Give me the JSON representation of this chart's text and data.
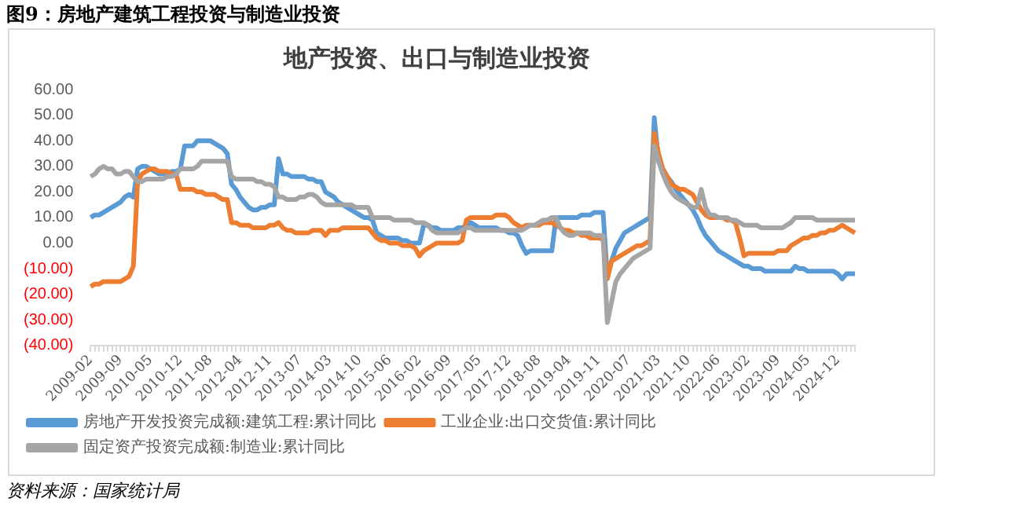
{
  "chart_data": {
    "type": "line",
    "title": "地产投资、出口与制造业投资",
    "subtitle": "图9：房地产建筑工程投资与制造业投资",
    "annotations": [
      "资料来源：国家统计局"
    ],
    "categories": [
      "2009-02",
      null,
      null,
      null,
      null,
      null,
      null,
      "2009-09",
      null,
      null,
      null,
      null,
      null,
      null,
      "2010-05",
      null,
      null,
      null,
      null,
      null,
      null,
      "2010-12",
      null,
      null,
      null,
      null,
      null,
      null,
      "2011-08",
      null,
      null,
      null,
      null,
      null,
      null,
      "2012-04",
      null,
      null,
      null,
      null,
      null,
      null,
      "2012-11",
      null,
      null,
      null,
      null,
      null,
      null,
      "2013-07",
      null,
      null,
      null,
      null,
      null,
      null,
      "2014-03",
      null,
      null,
      null,
      null,
      null,
      null,
      "2014-10",
      null,
      null,
      null,
      null,
      null,
      null,
      "2015-06",
      null,
      null,
      null,
      null,
      null,
      null,
      "2016-02",
      null,
      null,
      null,
      null,
      null,
      null,
      "2016-09",
      null,
      null,
      null,
      null,
      null,
      null,
      "2017-05",
      null,
      null,
      null,
      null,
      null,
      null,
      "2017-12",
      null,
      null,
      null,
      null,
      null,
      null,
      "2018-08",
      null,
      null,
      null,
      null,
      null,
      null,
      "2019-04",
      null,
      null,
      null,
      null,
      null,
      null,
      "2019-11",
      null,
      null,
      null,
      null,
      null,
      null,
      "2020-07",
      null,
      null,
      null,
      null,
      null,
      null,
      "2021-03",
      null,
      null,
      null,
      null,
      null,
      null,
      "2021-10",
      null,
      null,
      null,
      null,
      null,
      null,
      "2022-06",
      null,
      null,
      null,
      null,
      null,
      null,
      "2023-02",
      null,
      null,
      null,
      null,
      null,
      null,
      "2023-09",
      null,
      null,
      null,
      null,
      null,
      null,
      "2024-05",
      null,
      null,
      null,
      null,
      null,
      null,
      "2024-12",
      null,
      null,
      null,
      null
    ],
    "series": [
      {
        "name": "房地产开发投资完成额:建筑工程:累计同比",
        "color": "#5b9bd5",
        "values": [
          10,
          11,
          11,
          12,
          13,
          14,
          15,
          16,
          18,
          19,
          18,
          29,
          30,
          30,
          29,
          28,
          27,
          27,
          27,
          28,
          28,
          29,
          38,
          38,
          38,
          40,
          40,
          40,
          40,
          39,
          38,
          37,
          35,
          23,
          21,
          18,
          16,
          14,
          13,
          13,
          14,
          14,
          15,
          15,
          33,
          27,
          27,
          26,
          26,
          26,
          26,
          25,
          25,
          24,
          24,
          20,
          19,
          18,
          16,
          15,
          14,
          13,
          12,
          11,
          10,
          10,
          9,
          4,
          3,
          2,
          2,
          2,
          2,
          1,
          1,
          0,
          0,
          0,
          7,
          7,
          6,
          6,
          5,
          5,
          5,
          5,
          6,
          6,
          7,
          8,
          7,
          6,
          6,
          6,
          6,
          6,
          5,
          5,
          4,
          4,
          3,
          -1,
          -4,
          -3,
          -3,
          -3,
          -3,
          -3,
          -3,
          10,
          10,
          10,
          10,
          10,
          10,
          11,
          11,
          11,
          12,
          12,
          12,
          -13,
          -7,
          -2,
          1,
          4,
          5,
          6,
          7,
          8,
          9,
          10,
          49,
          32,
          29,
          26,
          24,
          21,
          19,
          17,
          15,
          13,
          10,
          6,
          3,
          1,
          -1,
          -3,
          -4,
          -5,
          -6,
          -7,
          -8,
          -9,
          -9,
          -10,
          -10,
          -10,
          -11,
          -11,
          -11,
          -11,
          -11,
          -11,
          -11,
          -9,
          -10,
          -10,
          -11,
          -11,
          -11,
          -11,
          -11,
          -11,
          -11,
          -12,
          -14,
          -12,
          -12,
          -12
        ]
      },
      {
        "name": "工业企业:出口交货值:累计同比",
        "color": "#ed7d31",
        "values": [
          -17,
          -16,
          -16,
          -15,
          -15,
          -15,
          -15,
          -15,
          -14,
          -13,
          -9,
          24,
          27,
          28,
          29,
          29,
          28,
          28,
          28,
          27,
          27,
          21,
          21,
          21,
          21,
          20,
          20,
          19,
          19,
          19,
          18,
          17,
          17,
          8,
          8,
          7,
          7,
          7,
          6,
          6,
          6,
          6,
          7,
          7,
          8,
          6,
          5,
          5,
          4,
          4,
          4,
          4,
          5,
          5,
          5,
          3,
          5,
          5,
          5,
          6,
          6,
          6,
          6,
          6,
          6,
          6,
          4,
          2,
          1,
          1,
          0,
          0,
          0,
          -1,
          -1,
          -1,
          -2,
          -5,
          -3,
          -2,
          -1,
          0,
          0,
          0,
          0,
          0,
          0,
          1,
          9,
          10,
          10,
          10,
          10,
          10,
          10,
          11,
          11,
          11,
          10,
          8,
          7,
          6,
          7,
          7,
          7,
          7,
          8,
          8,
          8,
          7,
          6,
          5,
          5,
          4,
          4,
          3,
          3,
          2,
          2,
          2,
          1.5,
          -14,
          -7,
          -6,
          -5,
          -4,
          -3,
          -2,
          -1,
          -1,
          0,
          1,
          43,
          35,
          29,
          26,
          23,
          22,
          21,
          21,
          20,
          19,
          16,
          13,
          11,
          10,
          10,
          10,
          10,
          9,
          9,
          8,
          2,
          -5,
          -4,
          -4,
          -4,
          -4,
          -4,
          -4,
          -4,
          -3,
          -3,
          -3,
          -1,
          0,
          1,
          2,
          2,
          3,
          3,
          4,
          4,
          5,
          5,
          6,
          7,
          6,
          5,
          4
        ]
      },
      {
        "name": "固定资产投资完成额:制造业:累计同比",
        "color": "#a5a5a5",
        "values": [
          26,
          27,
          29,
          30,
          29,
          29,
          27,
          27,
          28,
          28,
          26,
          24,
          24,
          25,
          25,
          25,
          25,
          25,
          26,
          26,
          27,
          29,
          29,
          29,
          29,
          30,
          32,
          32,
          32,
          32,
          32,
          32,
          32,
          26,
          25,
          25,
          25,
          25,
          25,
          24,
          24,
          23,
          23,
          22,
          18,
          18,
          17,
          17,
          17,
          18,
          18,
          19,
          19,
          18,
          16,
          15,
          15,
          15,
          15,
          15,
          15,
          15,
          14,
          14,
          14,
          14,
          10,
          10,
          10,
          10,
          10,
          9,
          9,
          9,
          9,
          9,
          8,
          8,
          8,
          7,
          5,
          4,
          4,
          4,
          4,
          4,
          4,
          5,
          6,
          6,
          5,
          5,
          5,
          5,
          5,
          5,
          5,
          5,
          5,
          5,
          5,
          5,
          6,
          7,
          7,
          8,
          9,
          9,
          10,
          10,
          6,
          4,
          3,
          3,
          4,
          4,
          4,
          4,
          3,
          3,
          3,
          -31,
          -23,
          -15,
          -12,
          -10,
          -8,
          -6,
          -5,
          -4,
          -3,
          -2,
          38,
          32,
          27,
          23,
          20,
          18,
          17,
          16,
          15,
          14,
          14,
          21,
          14,
          11,
          11,
          10,
          10,
          10,
          9,
          9,
          8,
          7,
          7,
          7,
          7,
          6,
          6,
          6,
          6,
          6,
          6,
          7,
          8,
          10,
          10,
          10,
          10,
          10,
          9,
          9,
          9,
          9,
          9,
          9,
          9,
          9,
          9,
          9
        ]
      }
    ],
    "ylim": [
      -40,
      60
    ],
    "yticks": [
      {
        "value": 60,
        "label": "60.00"
      },
      {
        "value": 50,
        "label": "50.00"
      },
      {
        "value": 40,
        "label": "40.00"
      },
      {
        "value": 30,
        "label": "30.00"
      },
      {
        "value": 20,
        "label": "20.00"
      },
      {
        "value": 10,
        "label": "10.00"
      },
      {
        "value": 0,
        "label": "0.00"
      },
      {
        "value": -10,
        "label": "(10.00)"
      },
      {
        "value": -20,
        "label": "(20.00)"
      },
      {
        "value": -30,
        "label": "(30.00)"
      },
      {
        "value": -40,
        "label": "(40.00)"
      }
    ],
    "grid": false,
    "legend": "bottom",
    "marker": "none",
    "line_style": "solid"
  }
}
